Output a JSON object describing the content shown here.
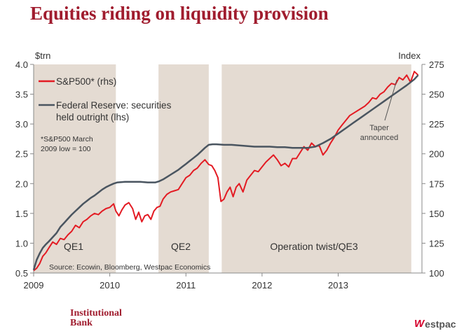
{
  "title": "Equities riding on liquidity provision",
  "brand_left": [
    "Institutional",
    "Bank"
  ],
  "brand_right": "estpac",
  "colors": {
    "title": "#a01c2e",
    "sp500": "#e31b23",
    "fed": "#4a5560",
    "shade": "#e4dbd2",
    "axis": "#888888"
  },
  "chart_data": {
    "type": "line",
    "title": "",
    "y_left": {
      "label": "$trn",
      "range": [
        0.5,
        4.0
      ],
      "ticks": [
        0.5,
        1.0,
        1.5,
        2.0,
        2.5,
        3.0,
        3.5,
        4.0
      ],
      "tick_labels": [
        "0.5",
        "1.0",
        "1.5",
        "2.0",
        "2.5",
        "3.0",
        "3.5",
        "4.0"
      ]
    },
    "y_right": {
      "label": "Index",
      "range": [
        100,
        275
      ],
      "ticks": [
        100,
        125,
        150,
        175,
        200,
        225,
        250,
        275
      ],
      "tick_labels": [
        "100",
        "125",
        "150",
        "175",
        "200",
        "225",
        "250",
        "275"
      ]
    },
    "x_axis": {
      "range": [
        2009.0,
        2014.1
      ],
      "ticks": [
        2009,
        2010,
        2011,
        2012,
        2013
      ],
      "tick_labels": [
        "2009",
        "2010",
        "2011",
        "2012",
        "2013"
      ]
    },
    "shaded_periods": [
      {
        "label": "QE1",
        "start": 2009.0,
        "end": 2010.08
      },
      {
        "label": "QE2",
        "start": 2010.64,
        "end": 2011.3
      },
      {
        "label": "Operation twist/QE3",
        "start": 2011.47,
        "end": 2013.96
      }
    ],
    "legend": [
      {
        "series": "sp500",
        "label": "S&P500* (rhs)"
      },
      {
        "series": "fed",
        "label": [
          "Federal Reserve: securities",
          "held outright (lhs)"
        ]
      }
    ],
    "footnote": [
      "*S&P500 March",
      "2009  low = 100"
    ],
    "source": "Source: Ecowin, Bloomberg, Westpac Economics",
    "annotation": {
      "text": [
        "Taper",
        "announced"
      ],
      "x": 2013.77,
      "y_rhs": 262
    },
    "series": [
      {
        "name": "S&P500* (rhs)",
        "axis": "right",
        "x": [
          2009.0,
          2009.04,
          2009.08,
          2009.12,
          2009.16,
          2009.2,
          2009.25,
          2009.3,
          2009.35,
          2009.4,
          2009.45,
          2009.5,
          2009.55,
          2009.6,
          2009.65,
          2009.7,
          2009.75,
          2009.8,
          2009.85,
          2009.9,
          2009.95,
          2010.0,
          2010.05,
          2010.08,
          2010.12,
          2010.16,
          2010.2,
          2010.25,
          2010.3,
          2010.34,
          2010.38,
          2010.42,
          2010.46,
          2010.5,
          2010.54,
          2010.58,
          2010.62,
          2010.66,
          2010.7,
          2010.75,
          2010.8,
          2010.85,
          2010.9,
          2010.95,
          2011.0,
          2011.05,
          2011.1,
          2011.15,
          2011.2,
          2011.25,
          2011.3,
          2011.34,
          2011.38,
          2011.42,
          2011.46,
          2011.5,
          2011.54,
          2011.58,
          2011.62,
          2011.66,
          2011.7,
          2011.75,
          2011.8,
          2011.85,
          2011.9,
          2011.95,
          2012.0,
          2012.05,
          2012.1,
          2012.15,
          2012.2,
          2012.25,
          2012.3,
          2012.35,
          2012.4,
          2012.45,
          2012.5,
          2012.55,
          2012.6,
          2012.65,
          2012.7,
          2012.75,
          2012.8,
          2012.85,
          2012.9,
          2012.95,
          2013.0,
          2013.05,
          2013.1,
          2013.15,
          2013.2,
          2013.25,
          2013.3,
          2013.35,
          2013.4,
          2013.45,
          2013.5,
          2013.55,
          2013.6,
          2013.65,
          2013.7,
          2013.75,
          2013.8,
          2013.85,
          2013.9,
          2013.95,
          2014.0,
          2014.05
        ],
        "values": [
          102,
          104,
          108,
          114,
          117,
          121,
          126,
          124,
          129,
          128,
          132,
          135,
          140,
          138,
          143,
          145,
          148,
          150,
          149,
          152,
          154,
          155,
          158,
          152,
          148,
          153,
          157,
          159,
          154,
          145,
          151,
          143,
          148,
          149,
          145,
          152,
          155,
          156,
          162,
          166,
          168,
          169,
          170,
          175,
          180,
          182,
          186,
          188,
          192,
          195,
          191,
          190,
          186,
          180,
          160,
          162,
          168,
          172,
          164,
          172,
          175,
          168,
          178,
          182,
          186,
          185,
          189,
          193,
          196,
          199,
          195,
          190,
          192,
          189,
          196,
          196,
          201,
          206,
          203,
          209,
          206,
          207,
          199,
          203,
          209,
          214,
          220,
          224,
          228,
          232,
          234,
          236,
          238,
          240,
          243,
          247,
          246,
          250,
          252,
          256,
          259,
          258,
          264,
          262,
          266,
          260,
          269,
          266
        ]
      },
      {
        "name": "Federal Reserve: securities held outright (lhs)",
        "axis": "left",
        "x": [
          2009.0,
          2009.04,
          2009.08,
          2009.12,
          2009.16,
          2009.2,
          2009.25,
          2009.3,
          2009.35,
          2009.4,
          2009.45,
          2009.5,
          2009.55,
          2009.6,
          2009.65,
          2009.7,
          2009.75,
          2009.8,
          2009.85,
          2009.9,
          2009.95,
          2010.0,
          2010.05,
          2010.1,
          2010.2,
          2010.3,
          2010.4,
          2010.5,
          2010.6,
          2010.65,
          2010.7,
          2010.75,
          2010.8,
          2010.85,
          2010.9,
          2010.95,
          2011.0,
          2011.05,
          2011.1,
          2011.15,
          2011.2,
          2011.25,
          2011.3,
          2011.35,
          2011.4,
          2011.5,
          2011.6,
          2011.7,
          2011.8,
          2011.9,
          2012.0,
          2012.1,
          2012.2,
          2012.3,
          2012.4,
          2012.5,
          2012.6,
          2012.7,
          2012.8,
          2012.9,
          2013.0,
          2013.1,
          2013.2,
          2013.3,
          2013.4,
          2013.5,
          2013.6,
          2013.7,
          2013.8,
          2013.9,
          2014.0,
          2014.05
        ],
        "values": [
          0.55,
          0.72,
          0.83,
          0.92,
          0.98,
          1.03,
          1.1,
          1.17,
          1.27,
          1.34,
          1.41,
          1.48,
          1.54,
          1.6,
          1.66,
          1.71,
          1.76,
          1.8,
          1.85,
          1.9,
          1.94,
          1.97,
          2.0,
          2.02,
          2.03,
          2.03,
          2.03,
          2.02,
          2.02,
          2.04,
          2.07,
          2.11,
          2.15,
          2.19,
          2.23,
          2.28,
          2.33,
          2.38,
          2.43,
          2.48,
          2.54,
          2.6,
          2.65,
          2.66,
          2.66,
          2.65,
          2.65,
          2.64,
          2.63,
          2.62,
          2.62,
          2.62,
          2.61,
          2.61,
          2.6,
          2.6,
          2.6,
          2.62,
          2.68,
          2.75,
          2.84,
          2.93,
          3.02,
          3.11,
          3.2,
          3.29,
          3.38,
          3.47,
          3.56,
          3.65,
          3.75,
          3.82
        ]
      }
    ]
  }
}
